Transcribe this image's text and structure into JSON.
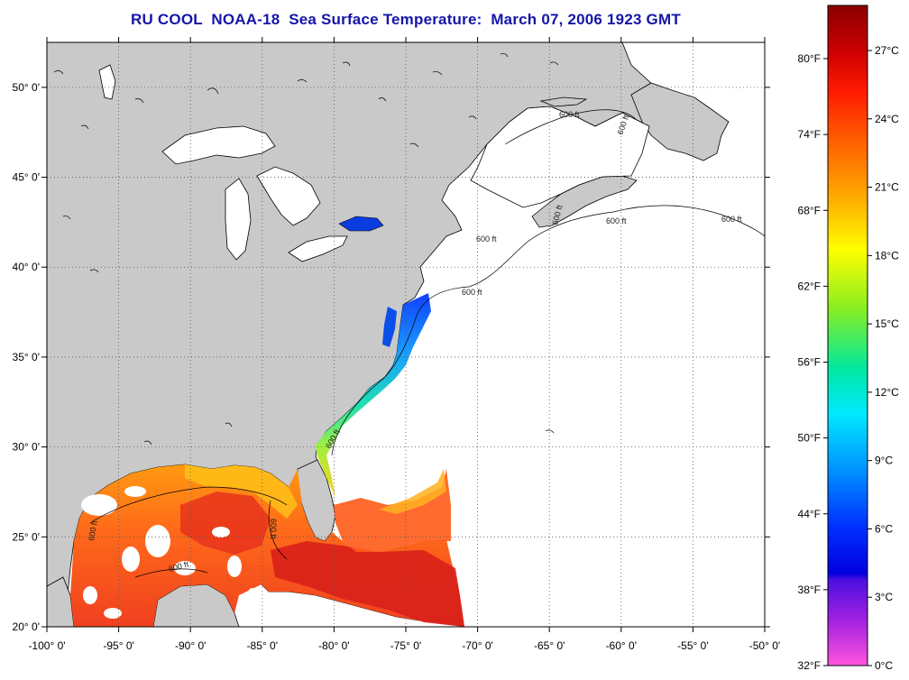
{
  "title": "RU COOL  NOAA-18  Sea Surface Temperature:  March 07, 2006 1923 GMT",
  "map": {
    "lon_range": [
      -100,
      -50
    ],
    "lat_range": [
      20,
      52.5
    ],
    "lon_labels": [
      "-100° 0'",
      "-95° 0'",
      "-90° 0'",
      "-85° 0'",
      "-80° 0'",
      "-75° 0'",
      "-70° 0'",
      "-65° 0'",
      "-60° 0'",
      "-55° 0'",
      "-50° 0'"
    ],
    "lat_labels": [
      "20° 0'",
      "25° 0'",
      "30° 0'",
      "35° 0'",
      "40° 0'",
      "45° 0'",
      "50° 0'"
    ],
    "contour_label": "600 ft",
    "colors": {
      "land": "#c9c9c9",
      "no_data": "#ffffff",
      "coast": "#000000"
    }
  },
  "colorbar": {
    "fahrenheit_labels": [
      "80°F",
      "74°F",
      "68°F",
      "62°F",
      "56°F",
      "50°F",
      "44°F",
      "38°F",
      "32°F"
    ],
    "celsius_labels": [
      "27°C",
      "24°C",
      "21°C",
      "18°C",
      "15°C",
      "12°C",
      "9°C",
      "6°C",
      "3°C",
      "0°C"
    ],
    "gradient_stops": [
      "#8b0000",
      "#ff0000",
      "#ff8800",
      "#ffff00",
      "#7cff00",
      "#00ffcc",
      "#00c8ff",
      "#0044ff",
      "#0000ff",
      "#5500ff",
      "#aa00ff",
      "#ff44cc",
      "#ff66ee"
    ]
  }
}
